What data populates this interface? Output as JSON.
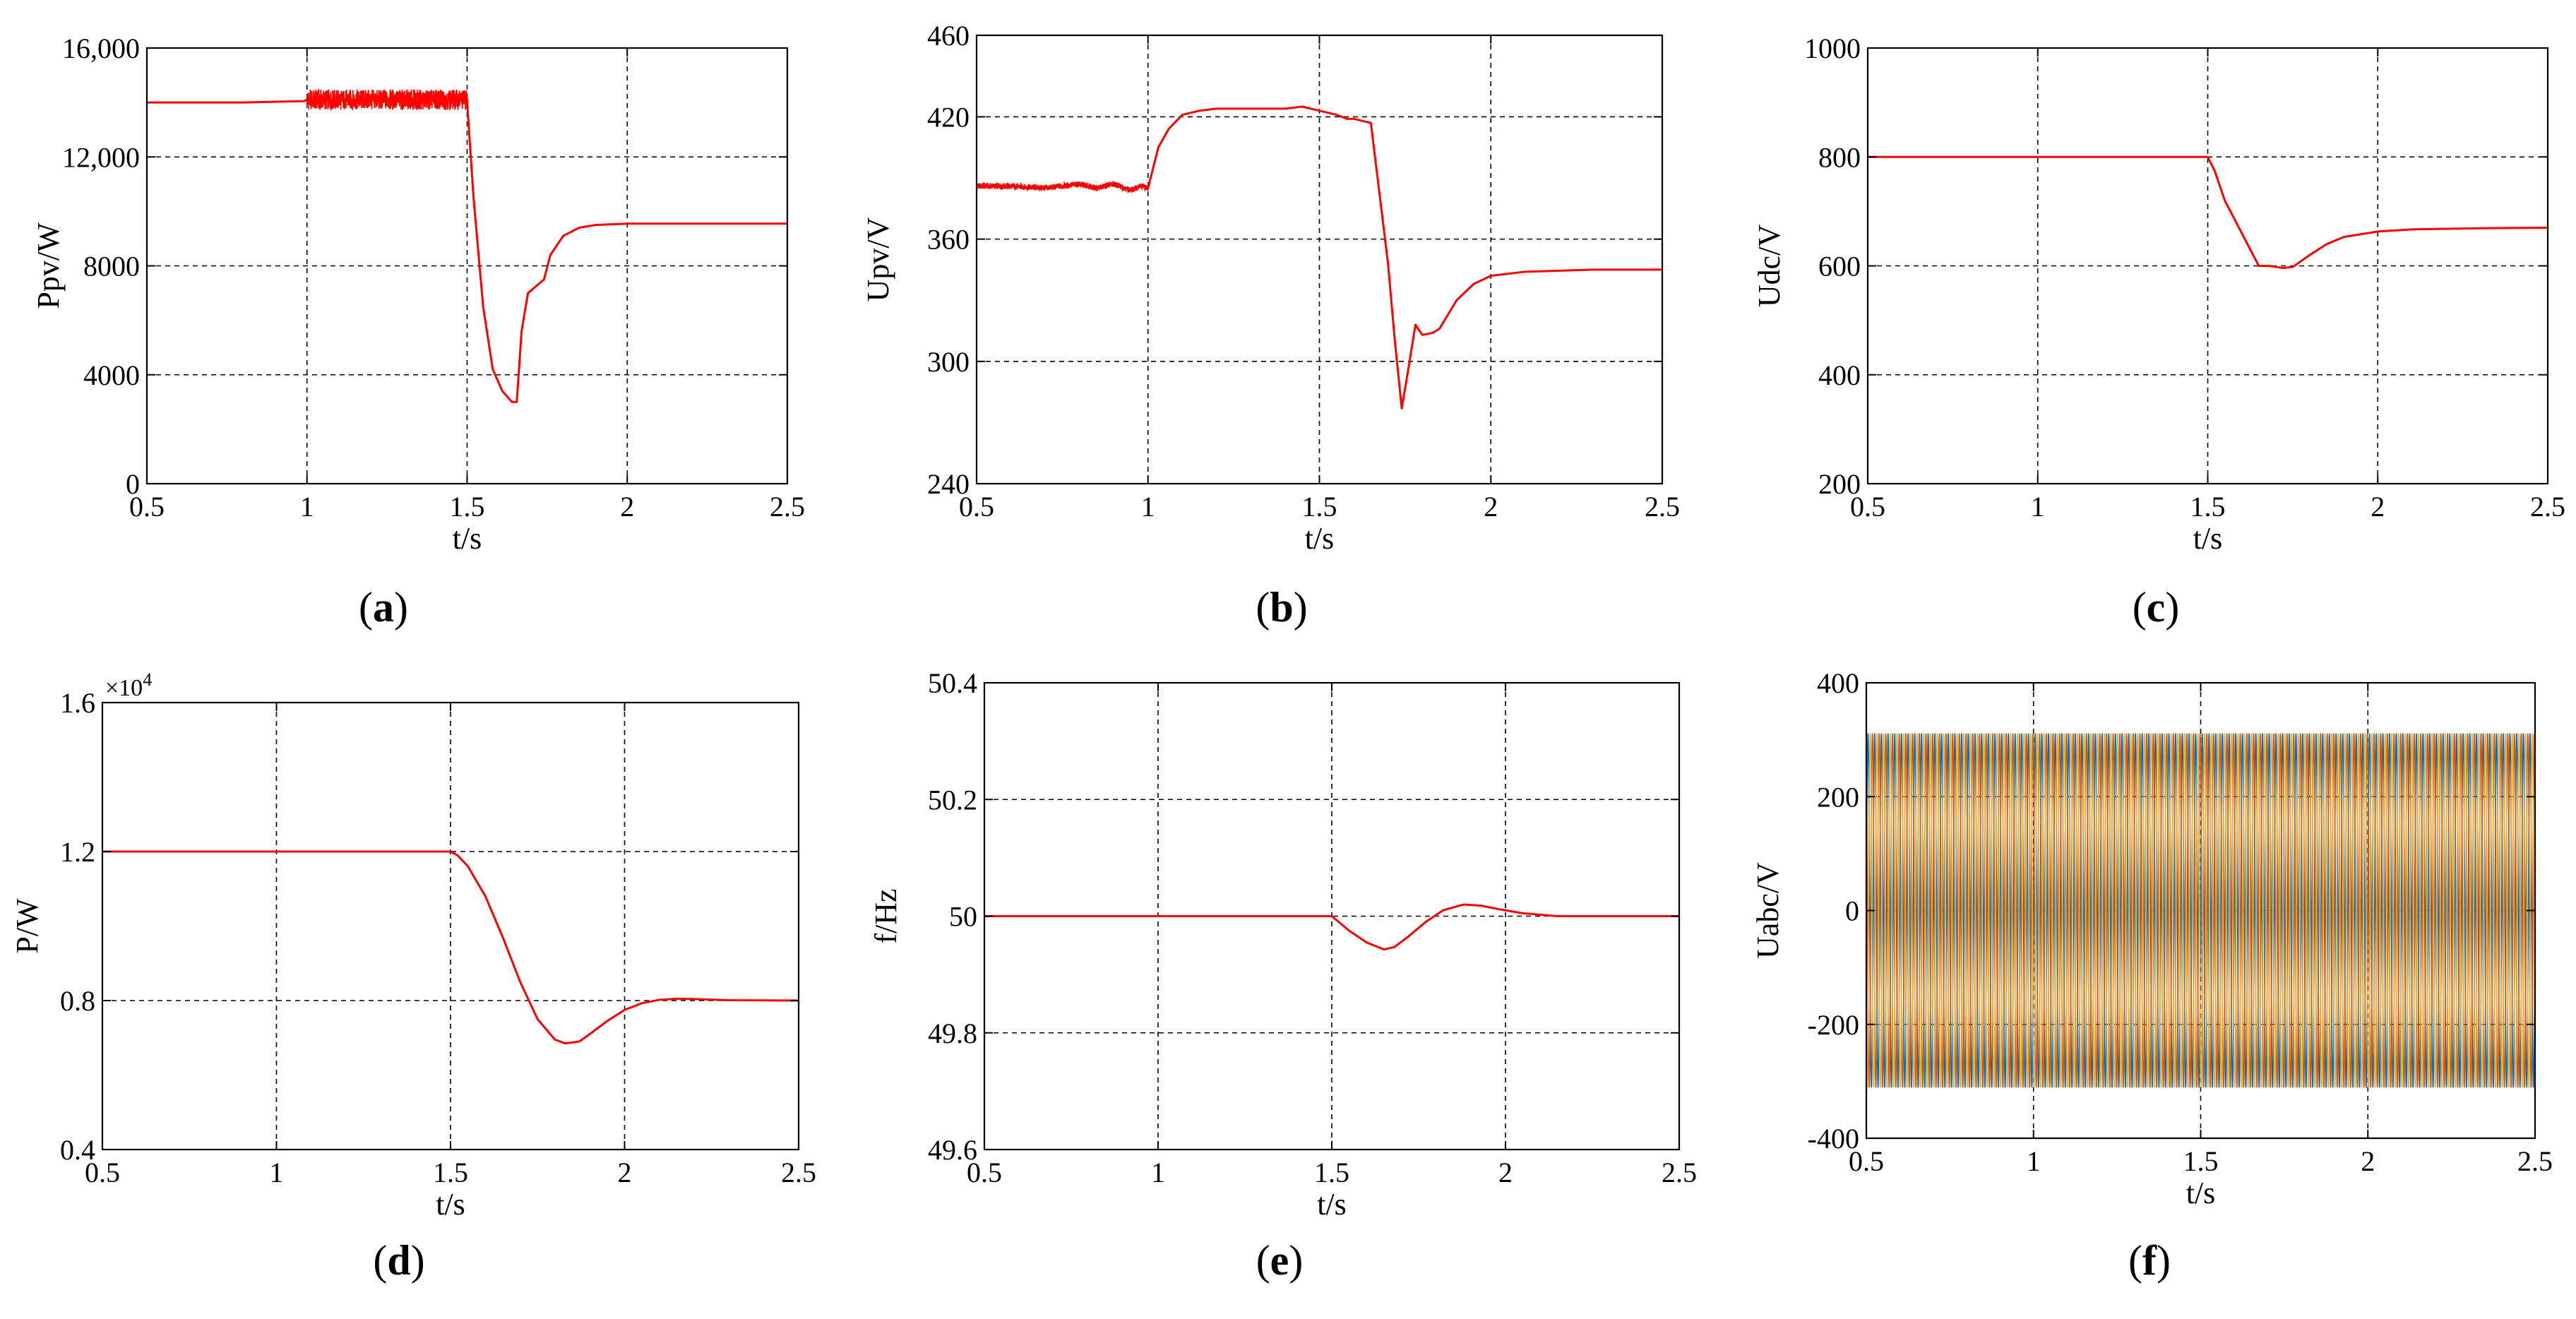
{
  "figure": {
    "panel_labels": [
      "(a)",
      "(b)",
      "(c)",
      "(d)",
      "(e)",
      "(f)"
    ]
  },
  "colors": {
    "series": "#ff0000",
    "phase_a": "#0072bd",
    "phase_b": "#edb120",
    "phase_c": "#d95319",
    "axes": "#000000",
    "grid": "#000000"
  },
  "chart_data": [
    {
      "id": "a",
      "type": "line",
      "label": "(a)",
      "xlabel": "t/s",
      "ylabel": "Ppv/W",
      "xlim": [
        0.5,
        2.5
      ],
      "ylim": [
        0,
        16000
      ],
      "xticks": [
        0.5,
        1,
        1.5,
        2,
        2.5
      ],
      "xtick_labels": [
        "0.5",
        "1",
        "1.5",
        "2",
        "2.5"
      ],
      "yticks": [
        0,
        4000,
        8000,
        12000,
        16000
      ],
      "ytick_labels": [
        "0",
        "4000",
        "8000",
        "12,000",
        "16,000"
      ],
      "grid": true,
      "series": [
        {
          "x": [
            0.5,
            0.8,
            0.99,
            1.0,
            1.5,
            1.5,
            1.52,
            1.55,
            1.58,
            1.61,
            1.64,
            1.655,
            1.67,
            1.69,
            1.72,
            1.74,
            1.76,
            1.8,
            1.85,
            1.9,
            2.0,
            2.5
          ],
          "y": [
            14000,
            14000,
            14050,
            14100,
            14100,
            14000,
            10500,
            6500,
            4200,
            3400,
            3000,
            3000,
            5600,
            7000,
            7300,
            7500,
            8400,
            9100,
            9400,
            9500,
            9550,
            9550
          ],
          "noise": [
            {
              "from": 1.0,
              "to": 1.5,
              "amp": 380
            }
          ]
        }
      ]
    },
    {
      "id": "b",
      "type": "line",
      "label": "(b)",
      "xlabel": "t/s",
      "ylabel": "Upv/V",
      "xlim": [
        0.5,
        2.5
      ],
      "ylim": [
        240,
        460
      ],
      "xticks": [
        0.5,
        1,
        1.5,
        2,
        2.5
      ],
      "xtick_labels": [
        "0.5",
        "1",
        "1.5",
        "2",
        "2.5"
      ],
      "yticks": [
        240,
        300,
        360,
        420,
        460
      ],
      "ytick_labels": [
        "240",
        "300",
        "360",
        "420",
        "460"
      ],
      "grid": true,
      "series": [
        {
          "x": [
            0.5,
            0.6,
            0.7,
            0.8,
            0.85,
            0.9,
            0.95,
            0.98,
            1.0,
            1.03,
            1.06,
            1.1,
            1.15,
            1.2,
            1.3,
            1.4,
            1.45,
            1.5,
            1.55,
            1.58,
            1.6,
            1.65,
            1.7,
            1.72,
            1.74,
            1.76,
            1.78,
            1.8,
            1.83,
            1.85,
            1.9,
            1.95,
            2.0,
            2.1,
            2.3,
            2.5
          ],
          "y": [
            386,
            386,
            385,
            387,
            385,
            387,
            384,
            386,
            385,
            405,
            414,
            421,
            423,
            424,
            424,
            424,
            425,
            423,
            421,
            419,
            419,
            417,
            348,
            310,
            277,
            297,
            318,
            313,
            314,
            316,
            330,
            338,
            342,
            344,
            345,
            345
          ],
          "noise": [
            {
              "from": 0.5,
              "to": 1.0,
              "amp": 1.5
            }
          ]
        }
      ]
    },
    {
      "id": "c",
      "type": "line",
      "label": "(c)",
      "xlabel": "t/s",
      "ylabel": "Udc/V",
      "xlim": [
        0.5,
        2.5
      ],
      "ylim": [
        200,
        1000
      ],
      "xticks": [
        0.5,
        1,
        1.5,
        2,
        2.5
      ],
      "xtick_labels": [
        "0.5",
        "1",
        "1.5",
        "2",
        "2.5"
      ],
      "yticks": [
        200,
        400,
        600,
        800,
        1000
      ],
      "ytick_labels": [
        "200",
        "400",
        "600",
        "800",
        "1000"
      ],
      "grid": true,
      "series": [
        {
          "x": [
            0.5,
            1.0,
            1.5,
            1.52,
            1.55,
            1.6,
            1.65,
            1.68,
            1.72,
            1.75,
            1.8,
            1.85,
            1.9,
            2.0,
            2.1,
            2.3,
            2.5
          ],
          "y": [
            800,
            800,
            800,
            775,
            720,
            660,
            600,
            600,
            596,
            598,
            620,
            640,
            653,
            663,
            667,
            669,
            670
          ],
          "noise": []
        }
      ]
    },
    {
      "id": "d",
      "type": "line",
      "label": "(d)",
      "xlabel": "t/s",
      "ylabel": "P/W",
      "xlim": [
        0.5,
        2.5
      ],
      "ylim": [
        0.4,
        1.6
      ],
      "scale_label": "×10^4",
      "xticks": [
        0.5,
        1,
        1.5,
        2,
        2.5
      ],
      "xtick_labels": [
        "0.5",
        "1",
        "1.5",
        "2",
        "2.5"
      ],
      "yticks": [
        0.4,
        0.8,
        1.2,
        1.6
      ],
      "ytick_labels": [
        "0.4",
        "0.8",
        "1.2",
        "1.6"
      ],
      "grid": true,
      "series": [
        {
          "x": [
            0.5,
            1.5,
            1.52,
            1.55,
            1.6,
            1.65,
            1.7,
            1.75,
            1.8,
            1.83,
            1.87,
            1.9,
            1.95,
            2.0,
            2.05,
            2.1,
            2.15,
            2.2,
            2.3,
            2.5
          ],
          "y": [
            1.2,
            1.2,
            1.19,
            1.16,
            1.08,
            0.97,
            0.85,
            0.75,
            0.695,
            0.685,
            0.69,
            0.71,
            0.745,
            0.775,
            0.793,
            0.802,
            0.805,
            0.804,
            0.801,
            0.8
          ],
          "noise": []
        }
      ]
    },
    {
      "id": "e",
      "type": "line",
      "label": "(e)",
      "xlabel": "t/s",
      "ylabel": "f/Hz",
      "xlim": [
        0.5,
        2.5
      ],
      "ylim": [
        49.6,
        50.4
      ],
      "xticks": [
        0.5,
        1,
        1.5,
        2,
        2.5
      ],
      "xtick_labels": [
        "0.5",
        "1",
        "1.5",
        "2",
        "2.5"
      ],
      "yticks": [
        49.6,
        49.8,
        50.0,
        50.2,
        50.4
      ],
      "ytick_labels": [
        "49.6",
        "49.8",
        "50",
        "50.2",
        "50.4"
      ],
      "grid": true,
      "series": [
        {
          "x": [
            0.5,
            1.5,
            1.52,
            1.55,
            1.6,
            1.65,
            1.68,
            1.72,
            1.77,
            1.82,
            1.88,
            1.93,
            1.98,
            2.05,
            2.15,
            2.5
          ],
          "y": [
            50.0,
            50.0,
            49.99,
            49.975,
            49.955,
            49.943,
            49.947,
            49.965,
            49.99,
            50.01,
            50.02,
            50.018,
            50.012,
            50.005,
            50.0,
            50.0
          ],
          "noise": []
        }
      ]
    },
    {
      "id": "f",
      "type": "line",
      "label": "(f)",
      "xlabel": "t/s",
      "ylabel": "Uabc/V",
      "xlim": [
        0.5,
        2.5
      ],
      "ylim": [
        -400,
        400
      ],
      "xticks": [
        0.5,
        1,
        1.5,
        2,
        2.5
      ],
      "xtick_labels": [
        "0.5",
        "1",
        "1.5",
        "2",
        "2.5"
      ],
      "yticks": [
        -400,
        -200,
        0,
        200,
        400
      ],
      "ytick_labels": [
        "-400",
        "-200",
        "0",
        "200",
        "400"
      ],
      "grid": true,
      "waveform": {
        "kind": "three_phase_sine",
        "amplitude": 311,
        "frequency_hz": 50
      }
    }
  ]
}
